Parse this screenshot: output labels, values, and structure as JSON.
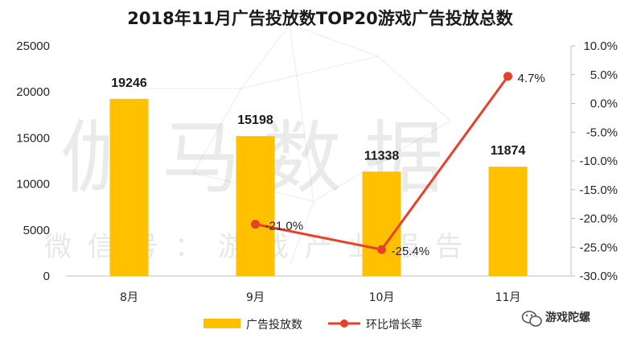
{
  "colors": {
    "bar": "#FFC000",
    "line": "#E8412A",
    "axis": "#bfbfbf",
    "text": "#262626"
  },
  "watermark": {
    "main": "伽马数据",
    "sub": "微信号：游戏产业报告"
  },
  "brand": {
    "icon": "wechat-icon",
    "name": "游戏陀螺"
  },
  "chart_data": {
    "type": "bar+line",
    "title": "2018年11月广告投放数TOP20游戏广告投放总数",
    "categories": [
      "8月",
      "9月",
      "10月",
      "11月"
    ],
    "series": [
      {
        "name": "广告投放数",
        "type": "bar",
        "axis": "left",
        "values": [
          19246,
          15198,
          11338,
          11874
        ],
        "labels": [
          "19246",
          "15198",
          "11338",
          "11874"
        ]
      },
      {
        "name": "环比增长率",
        "type": "line",
        "axis": "right",
        "values": [
          null,
          -21.0,
          -25.4,
          4.7
        ],
        "labels": [
          "",
          "-21.0%",
          "-25.4%",
          "4.7%"
        ]
      }
    ],
    "y_left": {
      "min": 0,
      "max": 25000,
      "step": 5000,
      "ticks": [
        "0",
        "5000",
        "10000",
        "15000",
        "20000",
        "25000"
      ]
    },
    "y_right": {
      "min": -30,
      "max": 10,
      "step": 5,
      "ticks": [
        "-30.0%",
        "-25.0%",
        "-20.0%",
        "-15.0%",
        "-10.0%",
        "-5.0%",
        "0.0%",
        "5.0%",
        "10.0%"
      ]
    },
    "legend": {
      "position": "bottom-center",
      "items": [
        "广告投放数",
        "环比增长率"
      ]
    },
    "grid": false
  }
}
